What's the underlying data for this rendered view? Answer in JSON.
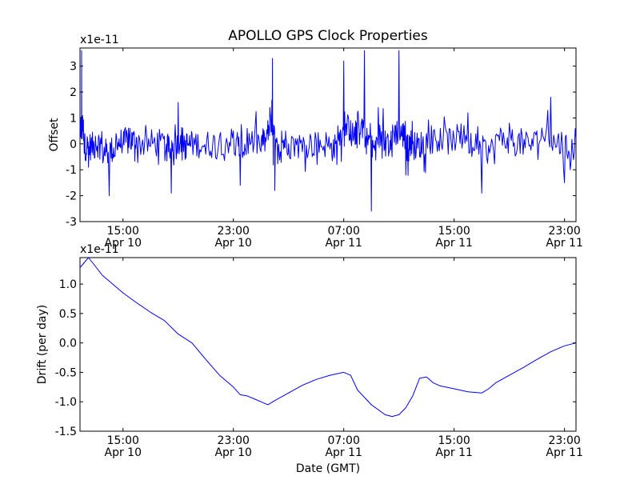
{
  "chart_data": [
    {
      "type": "line",
      "title": "APOLLO GPS Clock Properties",
      "ylabel": "Offset",
      "xlabel": "",
      "multiplier_label": "x1e-11",
      "color": "#0000ff",
      "xlim": [
        "Apr 10 11:53",
        "Apr 11 23:50"
      ],
      "ylim": [
        -3,
        3.7
      ],
      "yticks": [
        "-3",
        "-2",
        "-1",
        "0",
        "1",
        "2",
        "3"
      ],
      "xticks": [
        {
          "time": "15:00",
          "date": "Apr 10"
        },
        {
          "time": "23:00",
          "date": "Apr 10"
        },
        {
          "time": "07:00",
          "date": "Apr 11"
        },
        {
          "time": "15:00",
          "date": "Apr 11"
        },
        {
          "time": "23:00",
          "date": "Apr 11"
        }
      ],
      "series": [
        {
          "style": "noisy line (approx. envelope)",
          "x": [
            "Apr 10 11:53",
            "Apr 10 12:00",
            "Apr 10 12:10",
            "Apr 10 12:30",
            "Apr 10 13:00",
            "Apr 10 13:30",
            "Apr 10 14:00",
            "Apr 10 14:30",
            "Apr 10 15:00",
            "Apr 10 15:30",
            "Apr 10 16:00",
            "Apr 10 17:00",
            "Apr 10 18:00",
            "Apr 10 18:30",
            "Apr 10 19:00",
            "Apr 10 19:30",
            "Apr 10 20:00",
            "Apr 10 21:00",
            "Apr 10 22:00",
            "Apr 10 23:00",
            "Apr 10 23:30",
            "Apr 11 00:00",
            "Apr 11 01:00",
            "Apr 11 01:30",
            "Apr 11 01:50",
            "Apr 11 02:00",
            "Apr 11 02:30",
            "Apr 11 03:00",
            "Apr 11 04:00",
            "Apr 11 05:00",
            "Apr 11 06:00",
            "Apr 11 06:30",
            "Apr 11 07:00",
            "Apr 11 07:30",
            "Apr 11 08:00",
            "Apr 11 08:30",
            "Apr 11 09:00",
            "Apr 11 09:30",
            "Apr 11 10:00",
            "Apr 11 10:30",
            "Apr 11 11:00",
            "Apr 11 11:30",
            "Apr 11 11:45",
            "Apr 11 12:00",
            "Apr 11 12:30",
            "Apr 11 13:00",
            "Apr 11 14:00",
            "Apr 11 15:00",
            "Apr 11 16:00",
            "Apr 11 17:00",
            "Apr 11 18:00",
            "Apr 11 19:00",
            "Apr 11 20:00",
            "Apr 11 21:00",
            "Apr 11 22:00",
            "Apr 11 23:00",
            "Apr 11 23:50"
          ],
          "y": [
            0.6,
            3.6,
            0.2,
            -0.9,
            0.3,
            -0.2,
            -2.0,
            0.4,
            0.0,
            0.6,
            0.2,
            -0.1,
            0.3,
            -1.9,
            1.6,
            -0.6,
            0.4,
            -0.4,
            0.3,
            0.5,
            -1.6,
            0.6,
            -0.3,
            0.9,
            3.3,
            -1.8,
            0.5,
            0.0,
            -0.3,
            0.2,
            -0.2,
            -0.8,
            3.2,
            0.9,
            1.2,
            3.6,
            -2.6,
            1.4,
            0.5,
            -0.5,
            3.6,
            -1.2,
            0.3,
            0.0,
            -0.5,
            0.4,
            0.6,
            0.2,
            1.2,
            -1.9,
            0.3,
            0.8,
            -0.4,
            0.5,
            1.8,
            -1.5,
            0.2
          ]
        }
      ]
    },
    {
      "type": "line",
      "title": "",
      "ylabel": "Drift (per day)",
      "xlabel": "Date (GMT)",
      "multiplier_label": "x1e-11",
      "color": "#0000ff",
      "xlim": [
        "Apr 10 11:53",
        "Apr 11 23:50"
      ],
      "ylim": [
        -1.5,
        1.45
      ],
      "yticks": [
        "-1.5",
        "-1.0",
        "-0.5",
        "0.0",
        "0.5",
        "1.0"
      ],
      "xticks": [
        {
          "time": "15:00",
          "date": "Apr 10"
        },
        {
          "time": "23:00",
          "date": "Apr 10"
        },
        {
          "time": "07:00",
          "date": "Apr 11"
        },
        {
          "time": "15:00",
          "date": "Apr 11"
        },
        {
          "time": "23:00",
          "date": "Apr 11"
        }
      ],
      "series": [
        {
          "x": [
            "Apr 10 11:53",
            "Apr 10 12:30",
            "Apr 10 13:00",
            "Apr 10 13:30",
            "Apr 10 14:00",
            "Apr 10 15:00",
            "Apr 10 16:00",
            "Apr 10 17:00",
            "Apr 10 18:00",
            "Apr 10 19:00",
            "Apr 10 20:00",
            "Apr 10 21:00",
            "Apr 10 22:00",
            "Apr 10 23:00",
            "Apr 10 23:30",
            "Apr 11 00:00",
            "Apr 11 00:30",
            "Apr 11 01:00",
            "Apr 11 01:30",
            "Apr 11 02:00",
            "Apr 11 03:00",
            "Apr 11 04:00",
            "Apr 11 05:00",
            "Apr 11 06:00",
            "Apr 11 07:00",
            "Apr 11 07:30",
            "Apr 11 08:00",
            "Apr 11 09:00",
            "Apr 11 10:00",
            "Apr 11 10:30",
            "Apr 11 11:00",
            "Apr 11 11:30",
            "Apr 11 12:00",
            "Apr 11 12:30",
            "Apr 11 13:00",
            "Apr 11 13:30",
            "Apr 11 14:00",
            "Apr 11 15:00",
            "Apr 11 16:00",
            "Apr 11 17:00",
            "Apr 11 17:30",
            "Apr 11 18:00",
            "Apr 11 19:00",
            "Apr 11 20:00",
            "Apr 11 21:00",
            "Apr 11 22:00",
            "Apr 11 23:00",
            "Apr 11 23:50"
          ],
          "y": [
            1.28,
            1.45,
            1.3,
            1.15,
            1.05,
            0.85,
            0.68,
            0.52,
            0.38,
            0.15,
            0.0,
            -0.28,
            -0.55,
            -0.75,
            -0.88,
            -0.9,
            -0.95,
            -1.0,
            -1.05,
            -0.98,
            -0.85,
            -0.72,
            -0.62,
            -0.55,
            -0.5,
            -0.55,
            -0.8,
            -1.05,
            -1.22,
            -1.25,
            -1.22,
            -1.1,
            -0.9,
            -0.6,
            -0.58,
            -0.68,
            -0.73,
            -0.78,
            -0.83,
            -0.85,
            -0.78,
            -0.68,
            -0.55,
            -0.42,
            -0.28,
            -0.15,
            -0.05,
            0.0
          ]
        }
      ]
    }
  ]
}
